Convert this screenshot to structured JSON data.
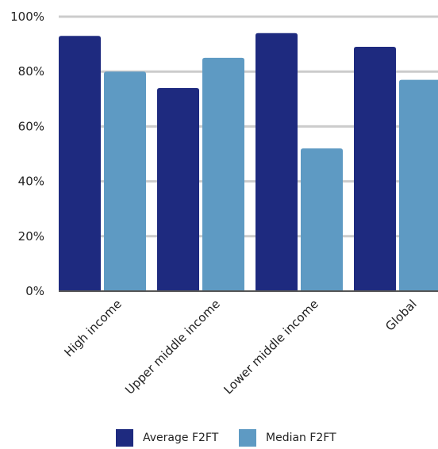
{
  "chart_data": {
    "type": "bar",
    "categories": [
      "High income",
      "Upper middle income",
      "Lower middle income",
      "Global"
    ],
    "series": [
      {
        "name": "Average F2FT",
        "values": [
          93,
          74,
          94,
          89
        ],
        "color": "#1e2a7f"
      },
      {
        "name": "Median F2FT",
        "values": [
          80,
          85,
          52,
          77
        ],
        "color": "#5e9ac3"
      }
    ],
    "yticks": [
      "0%",
      "20%",
      "40%",
      "60%",
      "80%",
      "100%"
    ],
    "ylim": [
      0,
      100
    ],
    "grid": true,
    "legend_position": "bottom",
    "gridline_color": "#cccccc",
    "axis_color": "#555555"
  }
}
